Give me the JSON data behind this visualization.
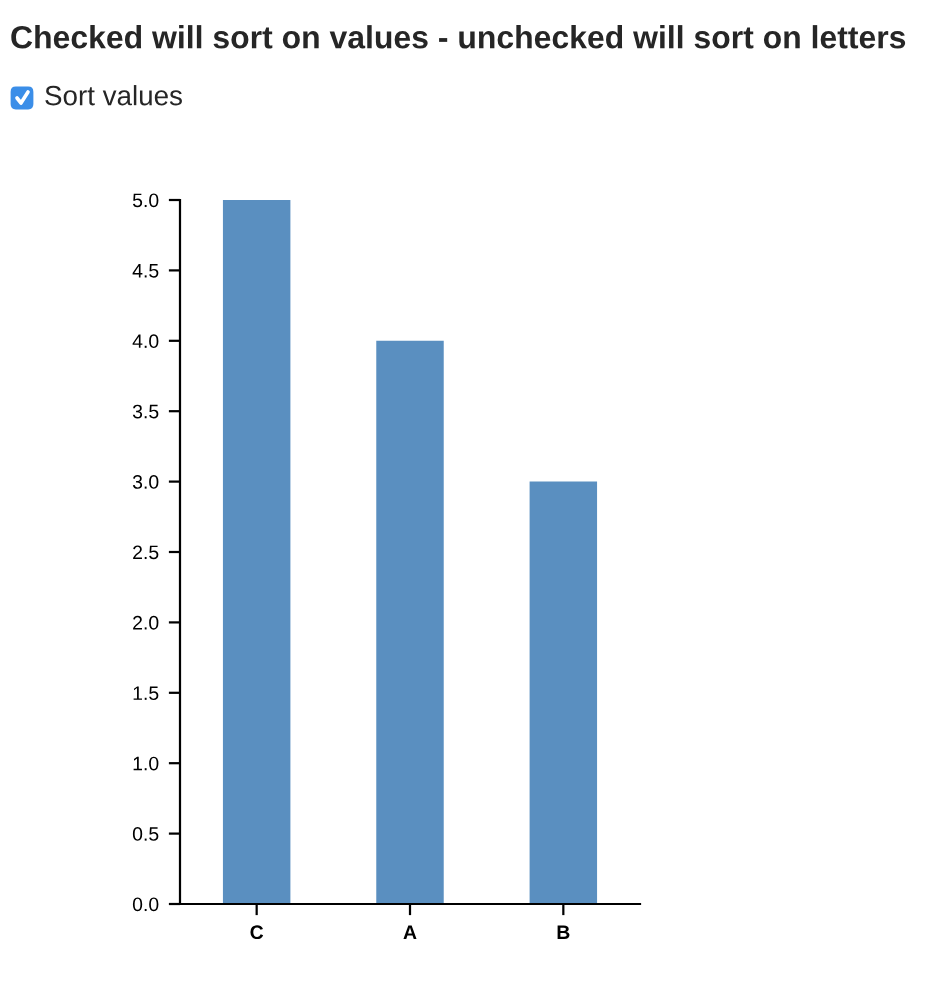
{
  "chart_data": {
    "type": "bar",
    "title": "Checked will sort on values - unchecked will sort on letters",
    "annotations": [
      "Sort values"
    ],
    "categories": [
      "C",
      "A",
      "B"
    ],
    "series": [
      {
        "color": "#5a8fc0",
        "values": [
          5,
          4,
          3
        ]
      }
    ],
    "ylim": [
      0,
      5
    ],
    "yticks": [
      {
        "value": 0,
        "label": "0.0"
      },
      {
        "value": 0.5,
        "label": "0.5"
      },
      {
        "value": 1,
        "label": "1.0"
      },
      {
        "value": 1.5,
        "label": "1.5"
      },
      {
        "value": 2,
        "label": "2.0"
      },
      {
        "value": 2.5,
        "label": "2.5"
      },
      {
        "value": 3,
        "label": "3.0"
      },
      {
        "value": 3.5,
        "label": "3.5"
      },
      {
        "value": 4,
        "label": "4.0"
      },
      {
        "value": 4.5,
        "label": "4.5"
      },
      {
        "value": 5,
        "label": "5.0"
      }
    ],
    "grid": false,
    "legend": false
  }
}
